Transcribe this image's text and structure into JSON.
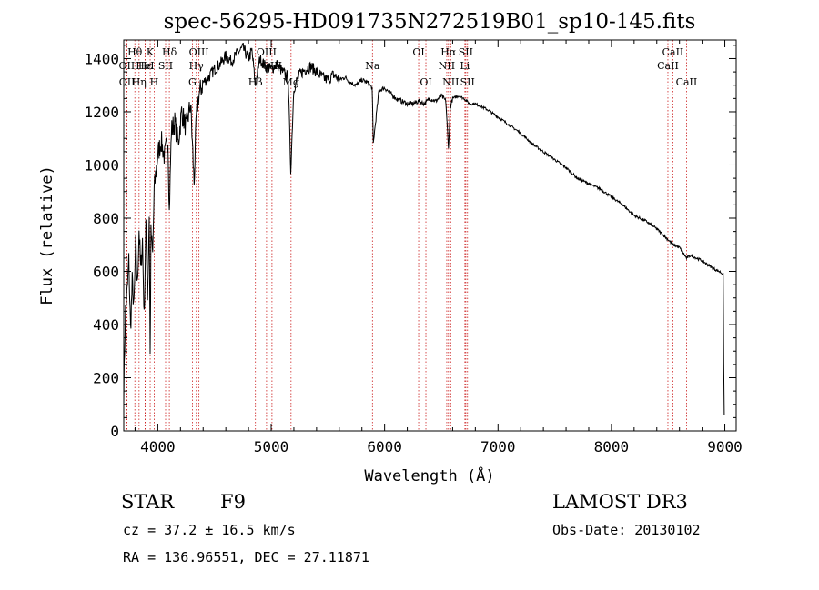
{
  "chart_data": {
    "type": "line",
    "title": "spec-56295-HD091735N272519B01_sp10-145.fits",
    "xlabel": "Wavelength (Å)",
    "ylabel": "Flux (relative)",
    "xlim": [
      3700,
      9100
    ],
    "ylim": [
      0,
      1470
    ],
    "xticks": [
      4000,
      5000,
      6000,
      7000,
      8000,
      9000
    ],
    "yticks": [
      0,
      200,
      400,
      600,
      800,
      1000,
      1200,
      1400
    ],
    "series": [
      {
        "name": "flux",
        "x": [
          3700,
          3715,
          3730,
          3745,
          3760,
          3775,
          3790,
          3805,
          3820,
          3835,
          3850,
          3865,
          3880,
          3895,
          3910,
          3925,
          3933,
          3940,
          3955,
          3968,
          3980,
          4000,
          4030,
          4060,
          4090,
          4102,
          4120,
          4150,
          4180,
          4210,
          4250,
          4290,
          4320,
          4340,
          4360,
          4400,
          4450,
          4500,
          4550,
          4600,
          4650,
          4700,
          4750,
          4800,
          4830,
          4861,
          4900,
          4950,
          5000,
          5050,
          5100,
          5150,
          5172,
          5200,
          5250,
          5300,
          5350,
          5400,
          5450,
          5500,
          5550,
          5600,
          5650,
          5700,
          5750,
          5800,
          5850,
          5890,
          5900,
          5950,
          6000,
          6050,
          6100,
          6150,
          6200,
          6250,
          6300,
          6350,
          6400,
          6450,
          6500,
          6540,
          6563,
          6580,
          6600,
          6650,
          6700,
          6750,
          6800,
          6900,
          7000,
          7100,
          7200,
          7300,
          7400,
          7500,
          7600,
          7700,
          7800,
          7900,
          8000,
          8100,
          8200,
          8300,
          8400,
          8498,
          8542,
          8600,
          8662,
          8700,
          8800,
          8900,
          8950,
          8985,
          8990,
          8995
        ],
        "values": [
          150,
          450,
          520,
          640,
          380,
          560,
          460,
          700,
          540,
          760,
          600,
          720,
          420,
          780,
          500,
          820,
          280,
          740,
          660,
          900,
          960,
          1040,
          1090,
          1030,
          1100,
          820,
          1130,
          1160,
          1080,
          1200,
          1140,
          1230,
          930,
          1180,
          1260,
          1310,
          1330,
          1360,
          1380,
          1410,
          1390,
          1420,
          1440,
          1400,
          1430,
          1300,
          1400,
          1370,
          1360,
          1380,
          1350,
          1330,
          980,
          1290,
          1340,
          1360,
          1370,
          1350,
          1330,
          1320,
          1340,
          1320,
          1330,
          1310,
          1300,
          1320,
          1310,
          1290,
          1080,
          1280,
          1290,
          1270,
          1250,
          1240,
          1230,
          1230,
          1240,
          1230,
          1250,
          1240,
          1260,
          1240,
          1060,
          1220,
          1250,
          1260,
          1250,
          1230,
          1230,
          1210,
          1180,
          1150,
          1120,
          1080,
          1050,
          1020,
          990,
          950,
          930,
          910,
          880,
          850,
          810,
          790,
          760,
          720,
          700,
          690,
          650,
          660,
          640,
          610,
          600,
          590,
          250,
          60
        ]
      }
    ],
    "lines": [
      {
        "label": "Hθ",
        "x": 3798,
        "row": 1
      },
      {
        "label": "OII",
        "x": 3727,
        "row": 2
      },
      {
        "label": "OII",
        "x": 3729,
        "row": 3
      },
      {
        "label": "Hε",
        "x": 3889,
        "row": 2
      },
      {
        "label": "K",
        "x": 3933,
        "row": 1
      },
      {
        "label": "H",
        "x": 3968,
        "row": 3
      },
      {
        "label": "HeI",
        "x": 3888,
        "row": 2
      },
      {
        "label": "SII",
        "x": 4069,
        "row": 2
      },
      {
        "label": "Hδ",
        "x": 4102,
        "row": 1
      },
      {
        "label": "Hη",
        "x": 3835,
        "row": 3
      },
      {
        "label": "OIII",
        "x": 4363,
        "row": 1
      },
      {
        "label": "Hγ",
        "x": 4340,
        "row": 2
      },
      {
        "label": "G",
        "x": 4305,
        "row": 3
      },
      {
        "label": "Hβ",
        "x": 4861,
        "row": 3
      },
      {
        "label": "OIII",
        "x": 4959,
        "row": 1
      },
      {
        "label": "OIII",
        "x": 5007,
        "row": 2
      },
      {
        "label": "Mg",
        "x": 5175,
        "row": 3
      },
      {
        "label": "Na",
        "x": 5893,
        "row": 2
      },
      {
        "label": "OI",
        "x": 6300,
        "row": 1
      },
      {
        "label": "OI",
        "x": 6364,
        "row": 3
      },
      {
        "label": "Hα",
        "x": 6563,
        "row": 1
      },
      {
        "label": "NII",
        "x": 6548,
        "row": 2
      },
      {
        "label": "NII",
        "x": 6583,
        "row": 3
      },
      {
        "label": "SII",
        "x": 6716,
        "row": 1
      },
      {
        "label": "Li",
        "x": 6708,
        "row": 2
      },
      {
        "label": "SII",
        "x": 6731,
        "row": 3
      },
      {
        "label": "CaII",
        "x": 8542,
        "row": 1
      },
      {
        "label": "CaII",
        "x": 8498,
        "row": 2
      },
      {
        "label": "CaII",
        "x": 8662,
        "row": 3
      }
    ]
  },
  "info": {
    "class_label": "STAR",
    "subclass": "F9",
    "survey": "LAMOST DR3",
    "cz": "cz = 37.2 ± 16.5 km/s",
    "obs_date": "Obs-Date: 20130102",
    "coords": "RA = 136.96551, DEC =  27.11871"
  }
}
